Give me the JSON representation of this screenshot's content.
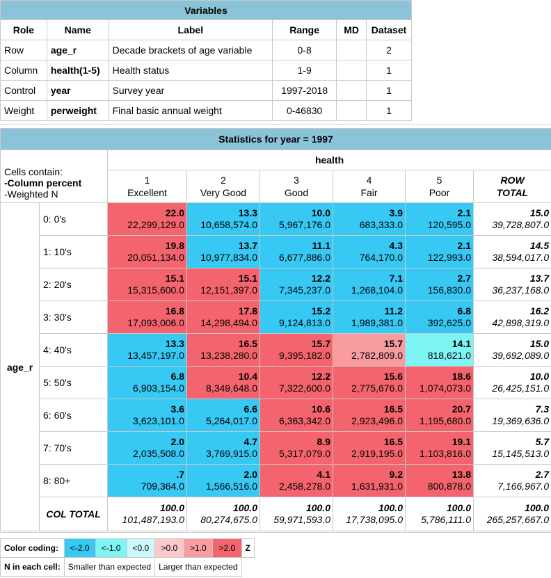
{
  "variables": {
    "title": "Variables",
    "headers": [
      "Role",
      "Name",
      "Label",
      "Range",
      "MD",
      "Dataset"
    ],
    "rows": [
      {
        "role": "Row",
        "name": "age_r",
        "label": "Decade brackets of age variable",
        "range": "0-8",
        "md": "",
        "dataset": "2"
      },
      {
        "role": "Column",
        "name": "health(1-5)",
        "label": "Health status",
        "range": "1-9",
        "md": "",
        "dataset": "1"
      },
      {
        "role": "Control",
        "name": "year",
        "label": "Survey year",
        "range": "1997-2018",
        "md": "",
        "dataset": "1"
      },
      {
        "role": "Weight",
        "name": "perweight",
        "label": "Final basic annual weight",
        "range": "0-46830",
        "md": "",
        "dataset": "1"
      }
    ]
  },
  "stats": {
    "title": "Statistics for year = 1997",
    "cells_contain": "Cells contain:",
    "line1": "-Column percent",
    "line2": "-Weighted N",
    "col_var": "health",
    "row_var": "age_r",
    "columns": [
      {
        "num": "1",
        "name": "Excellent"
      },
      {
        "num": "2",
        "name": "Very Good"
      },
      {
        "num": "3",
        "name": "Good"
      },
      {
        "num": "4",
        "name": "Fair"
      },
      {
        "num": "5",
        "name": "Poor"
      }
    ],
    "row_total_label_1": "ROW",
    "row_total_label_2": "TOTAL",
    "rows": [
      {
        "label": "0: 0's",
        "cells": [
          [
            "22.0",
            "22,299,129.0"
          ],
          [
            "13.3",
            "10,658,574.0"
          ],
          [
            "10.0",
            "5,967,176.0"
          ],
          [
            "3.9",
            "683,333.0"
          ],
          [
            "2.1",
            "120,595.0"
          ]
        ],
        "z": [
          "pos3",
          "neg3",
          "neg3",
          "neg3",
          "neg3"
        ],
        "total": [
          "15.0",
          "39,728,807.0"
        ]
      },
      {
        "label": "1: 10's",
        "cells": [
          [
            "19.8",
            "20,051,134.0"
          ],
          [
            "13.7",
            "10,977,834.0"
          ],
          [
            "11.1",
            "6,677,886.0"
          ],
          [
            "4.3",
            "764,170.0"
          ],
          [
            "2.1",
            "122,993.0"
          ]
        ],
        "z": [
          "pos3",
          "neg3",
          "neg3",
          "neg3",
          "neg3"
        ],
        "total": [
          "14.5",
          "38,594,017.0"
        ]
      },
      {
        "label": "2: 20's",
        "cells": [
          [
            "15.1",
            "15,315,600.0"
          ],
          [
            "15.1",
            "12,151,397.0"
          ],
          [
            "12.2",
            "7,345,237.0"
          ],
          [
            "7.1",
            "1,268,104.0"
          ],
          [
            "2.7",
            "156,830.0"
          ]
        ],
        "z": [
          "pos3",
          "pos3",
          "neg3",
          "neg3",
          "neg3"
        ],
        "total": [
          "13.7",
          "36,237,168.0"
        ]
      },
      {
        "label": "3: 30's",
        "cells": [
          [
            "16.8",
            "17,093,006.0"
          ],
          [
            "17.8",
            "14,298,494.0"
          ],
          [
            "15.2",
            "9,124,813.0"
          ],
          [
            "11.2",
            "1,989,381.0"
          ],
          [
            "6.8",
            "392,625.0"
          ]
        ],
        "z": [
          "pos3",
          "pos3",
          "neg3",
          "neg3",
          "neg3"
        ],
        "total": [
          "16.2",
          "42,898,319.0"
        ]
      },
      {
        "label": "4: 40's",
        "cells": [
          [
            "13.3",
            "13,457,197.0"
          ],
          [
            "16.5",
            "13,238,280.0"
          ],
          [
            "15.7",
            "9,395,182.0"
          ],
          [
            "15.7",
            "2,782,809.0"
          ],
          [
            "14.1",
            "818,621.0"
          ]
        ],
        "z": [
          "neg3",
          "pos3",
          "pos3",
          "pos2",
          "neg1"
        ],
        "total": [
          "15.0",
          "39,692,089.0"
        ]
      },
      {
        "label": "5: 50's",
        "cells": [
          [
            "6.8",
            "6,903,154.0"
          ],
          [
            "10.4",
            "8,349,648.0"
          ],
          [
            "12.2",
            "7,322,600.0"
          ],
          [
            "15.6",
            "2,775,676.0"
          ],
          [
            "18.6",
            "1,074,073.0"
          ]
        ],
        "z": [
          "neg3",
          "pos3",
          "pos3",
          "pos3",
          "pos3"
        ],
        "total": [
          "10.0",
          "26,425,151.0"
        ]
      },
      {
        "label": "6: 60's",
        "cells": [
          [
            "3.6",
            "3,623,101.0"
          ],
          [
            "6.6",
            "5,264,017.0"
          ],
          [
            "10.6",
            "6,363,342.0"
          ],
          [
            "16.5",
            "2,923,496.0"
          ],
          [
            "20.7",
            "1,195,680.0"
          ]
        ],
        "z": [
          "neg3",
          "neg3",
          "pos3",
          "pos3",
          "pos3"
        ],
        "total": [
          "7.3",
          "19,369,636.0"
        ]
      },
      {
        "label": "7: 70's",
        "cells": [
          [
            "2.0",
            "2,035,508.0"
          ],
          [
            "4.7",
            "3,769,915.0"
          ],
          [
            "8.9",
            "5,317,079.0"
          ],
          [
            "16.5",
            "2,919,195.0"
          ],
          [
            "19.1",
            "1,103,816.0"
          ]
        ],
        "z": [
          "neg3",
          "neg3",
          "pos3",
          "pos3",
          "pos3"
        ],
        "total": [
          "5.7",
          "15,145,513.0"
        ]
      },
      {
        "label": "8: 80+",
        "cells": [
          [
            ".7",
            "709,364.0"
          ],
          [
            "2.0",
            "1,566,516.0"
          ],
          [
            "4.1",
            "2,458,278.0"
          ],
          [
            "9.2",
            "1,631,931.0"
          ],
          [
            "13.8",
            "800,878.0"
          ]
        ],
        "z": [
          "neg3",
          "neg3",
          "pos3",
          "pos3",
          "pos3"
        ],
        "total": [
          "2.7",
          "7,166,967.0"
        ]
      }
    ],
    "col_total_label": "COL TOTAL",
    "col_totals": [
      [
        "100.0",
        "101,487,193.0"
      ],
      [
        "100.0",
        "80,274,675.0"
      ],
      [
        "100.0",
        "59,971,593.0"
      ],
      [
        "100.0",
        "17,738,095.0"
      ],
      [
        "100.0",
        "5,786,111.0"
      ]
    ],
    "grand_total": [
      "100.0",
      "265,257,667.0"
    ]
  },
  "legend": {
    "color_coding": "Color coding:",
    "swatches": [
      "<-2.0",
      "<-1.0",
      "<0.0",
      ">0.0",
      ">1.0",
      ">2.0"
    ],
    "swatch_colors": [
      "#37c8f4",
      "#7ff4f4",
      "#ccf9fb",
      "#fbc8cb",
      "#f89ca0",
      "#f4646e"
    ],
    "z": "Z",
    "n_in_each": "N in each cell:",
    "smaller": "Smaller than expected",
    "larger": "Larger than expected"
  }
}
